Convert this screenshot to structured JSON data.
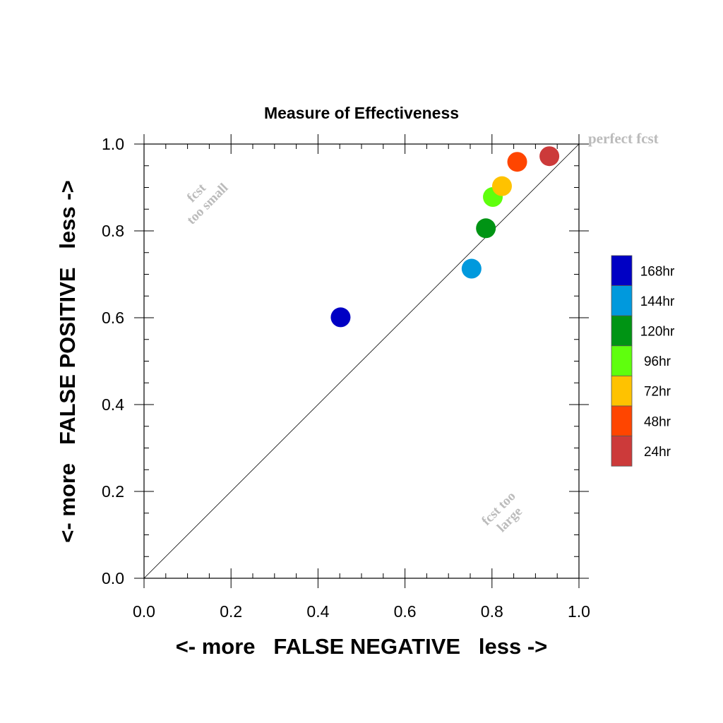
{
  "chart_data": {
    "type": "scatter",
    "title": "Measure of Effectiveness",
    "xlabel": "<- more   FALSE NEGATIVE   less ->",
    "ylabel": "<- more   FALSE POSITIVE   less ->",
    "xlim": [
      0.0,
      1.0
    ],
    "ylim": [
      0.0,
      1.0
    ],
    "x_ticks": [
      "0.0",
      "0.2",
      "0.4",
      "0.6",
      "0.8",
      "1.0"
    ],
    "y_ticks": [
      "0.0",
      "0.2",
      "0.4",
      "0.6",
      "0.8",
      "1.0"
    ],
    "grid": false,
    "diagonal_reference_line": true,
    "legend_position": "right",
    "annotations": {
      "perfect": "perfect fcst",
      "too_small": [
        "fcst",
        "too small"
      ],
      "too_large": [
        "fcst too",
        "large"
      ]
    },
    "annotation_color": "#bbbbbb",
    "series": [
      {
        "name": "168hr",
        "color": "#0000c4",
        "x": 0.452,
        "y": 0.601
      },
      {
        "name": "144hr",
        "color": "#0099dd",
        "x": 0.753,
        "y": 0.713
      },
      {
        "name": "120hr",
        "color": "#009414",
        "x": 0.786,
        "y": 0.806
      },
      {
        "name": "96hr",
        "color": "#5fff0d",
        "x": 0.802,
        "y": 0.878
      },
      {
        "name": "72hr",
        "color": "#ffc200",
        "x": 0.823,
        "y": 0.903
      },
      {
        "name": "48hr",
        "color": "#ff4500",
        "x": 0.858,
        "y": 0.959
      },
      {
        "name": "24hr",
        "color": "#cc3a3a",
        "x": 0.932,
        "y": 0.972
      }
    ]
  }
}
